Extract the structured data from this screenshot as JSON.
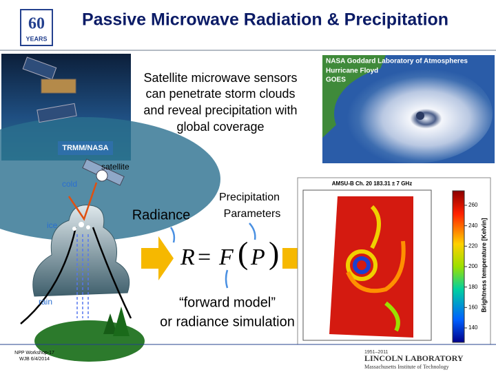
{
  "header": {
    "logo": {
      "number": "60",
      "text": "YEARS"
    },
    "title": "Passive Microwave Radiation & Precipitation"
  },
  "left_image": {
    "caption": "TRMM/NASA"
  },
  "intro": {
    "lines": [
      "Satellite microwave sensors",
      "can penetrate storm clouds",
      "and reveal precipitation with",
      "global coverage"
    ]
  },
  "right_image": {
    "credit": "NASA Goddard Laboratory of Atmospheres",
    "name": "Hurricane Floyd",
    "source": "GOES"
  },
  "diagram": {
    "satellite": "satellite",
    "cold": "cold",
    "ice": "ice",
    "rain": "rain"
  },
  "radiance": "Radiance",
  "parameters": [
    "Precipitation",
    "Parameters"
  ],
  "equation": {
    "lhs": "R",
    "equals": "=",
    "function": "F",
    "open": "(",
    "argument": "P",
    "close": ")"
  },
  "forward_model": [
    "“forward model”",
    "or radiance simulation"
  ],
  "figure": {
    "title": "AMSU-B Ch. 20 183.31 ± 7 GHz",
    "colorbar": {
      "label": "Brightness temperature [Kelvin]",
      "ticks": [
        260,
        240,
        220,
        200,
        180,
        160,
        140
      ]
    }
  },
  "footer": {
    "event": "NPP Workshop-17",
    "author": "WJB 6/4/2014",
    "lab_years": "1951–2011",
    "lab_name": "LINCOLN LABORATORY",
    "lab_institute": "Massachusetts Institute of Technology"
  }
}
